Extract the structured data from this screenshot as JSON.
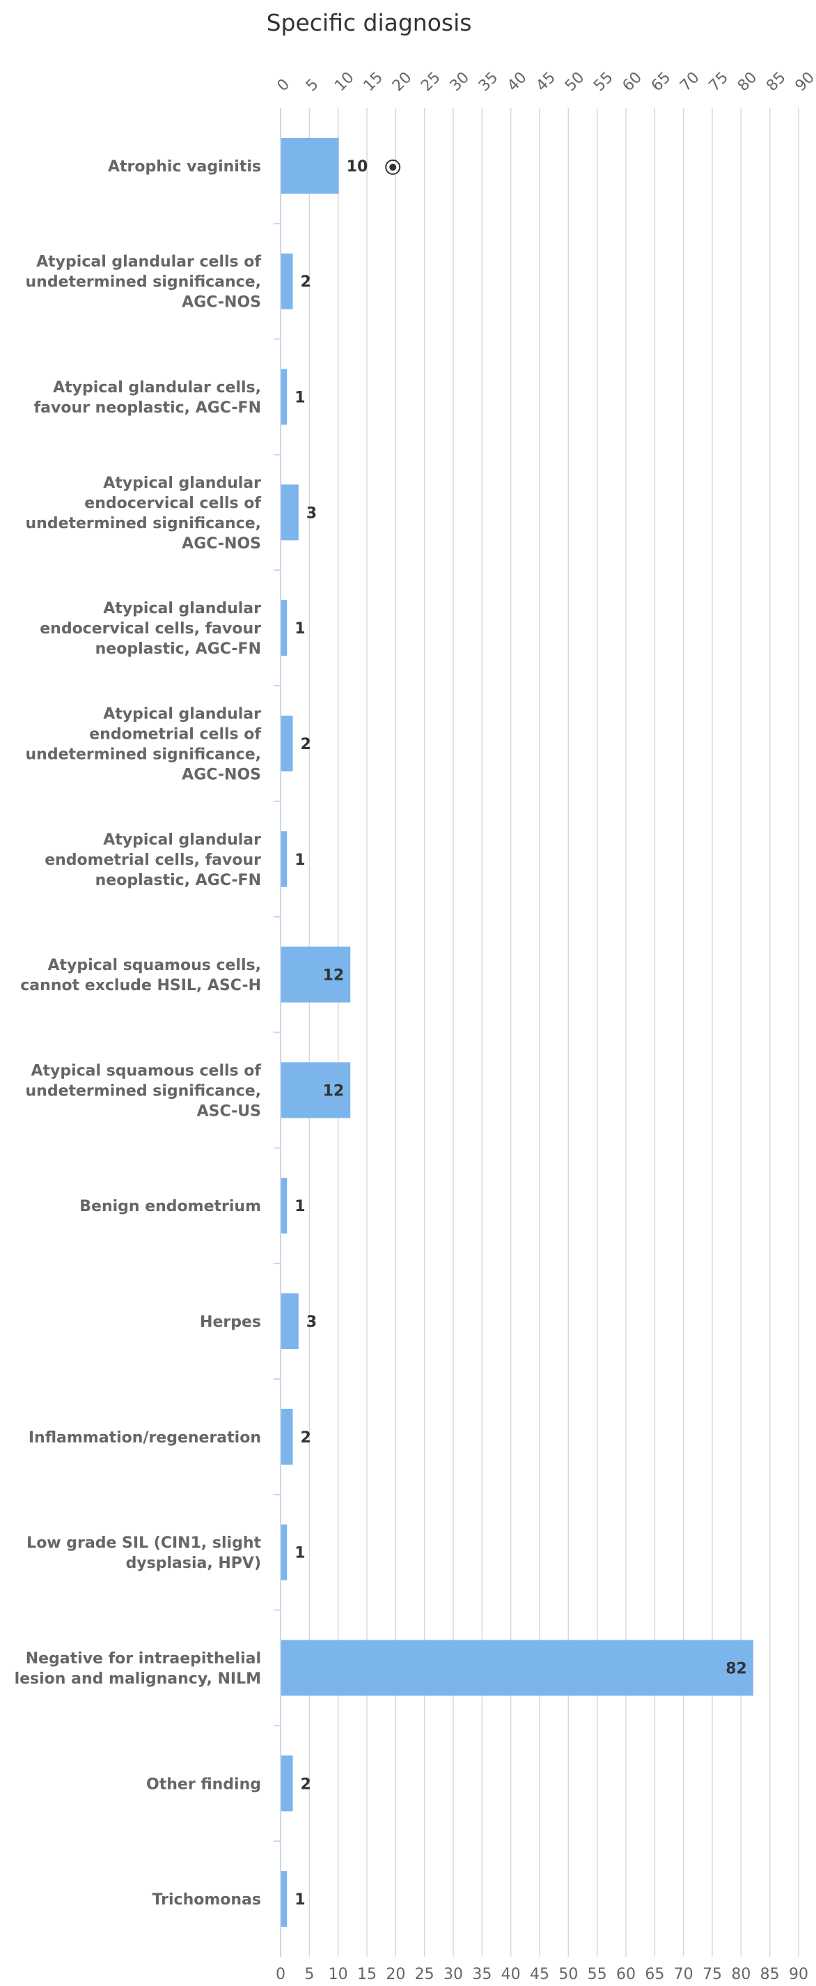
{
  "chart_data": {
    "type": "bar",
    "orientation": "horizontal",
    "title": "Specific diagnosis",
    "categories": [
      "Atrophic vaginitis",
      "Atypical glandular cells of undetermined significance, AGC-NOS",
      "Atypical glandular cells, favour neoplastic, AGC-FN",
      "Atypical glandular endocervical cells of undetermined significance, AGC-NOS",
      "Atypical glandular endocervical cells, favour neoplastic, AGC-FN",
      "Atypical glandular endometrial cells of undetermined significance, AGC-NOS",
      "Atypical glandular endometrial cells, favour neoplastic, AGC-FN",
      "Atypical squamous cells, cannot exclude HSIL, ASC-H",
      "Atypical squamous cells of undetermined significance, ASC-US",
      "Benign endometrium",
      "Herpes",
      "Inflammation/regeneration",
      "Low grade SIL (CIN1, slight dysplasia, HPV)",
      "Negative for intraepithelial lesion and malignancy, NILM",
      "Other finding",
      "Trichomonas"
    ],
    "category_lines": [
      [
        "Atrophic vaginitis"
      ],
      [
        "Atypical glandular cells of",
        "undetermined significance,",
        "AGC-NOS"
      ],
      [
        "Atypical glandular cells,",
        "favour neoplastic, AGC-FN"
      ],
      [
        "Atypical glandular",
        "endocervical cells of",
        "undetermined significance,",
        "AGC-NOS"
      ],
      [
        "Atypical glandular",
        "endocervical cells, favour",
        "neoplastic, AGC-FN"
      ],
      [
        "Atypical glandular",
        "endometrial cells of",
        "undetermined significance,",
        "AGC-NOS"
      ],
      [
        "Atypical glandular",
        "endometrial cells, favour",
        "neoplastic, AGC-FN"
      ],
      [
        "Atypical squamous cells,",
        "cannot exclude HSIL, ASC-H"
      ],
      [
        "Atypical squamous cells of",
        "undetermined significance,",
        "ASC-US"
      ],
      [
        "Benign endometrium"
      ],
      [
        "Herpes"
      ],
      [
        "Inflammation/regeneration"
      ],
      [
        "Low grade SIL (CIN1, slight",
        "dysplasia, HPV)"
      ],
      [
        "Negative for intraepithelial",
        "lesion and malignancy, NILM"
      ],
      [
        "Other finding"
      ],
      [
        "Trichomonas"
      ]
    ],
    "values": [
      10,
      2,
      1,
      3,
      1,
      2,
      1,
      12,
      12,
      1,
      3,
      2,
      1,
      82,
      2,
      1
    ],
    "xlim": [
      0,
      90
    ],
    "ticks": [
      0,
      5,
      10,
      15,
      20,
      25,
      30,
      35,
      40,
      45,
      50,
      55,
      60,
      65,
      70,
      75,
      80,
      85,
      90
    ],
    "grid": true,
    "bar_color": "#7cb5ec",
    "marker": {
      "category_index": 0,
      "value": 19.5,
      "shape": "circle-dot"
    }
  }
}
